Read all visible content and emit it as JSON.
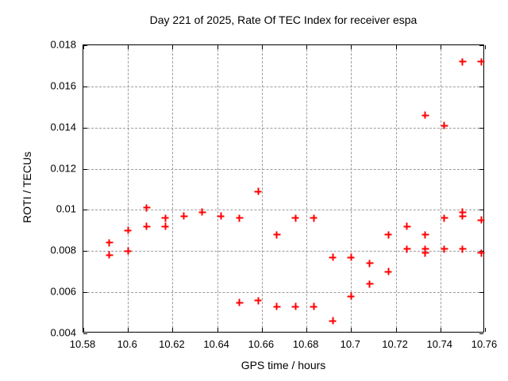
{
  "chart_data": {
    "type": "scatter",
    "title": "Day 221 of 2025, Rate Of TEC Index for receiver espa",
    "xlabel": "GPS time / hours",
    "ylabel": "ROTI / TECUs",
    "xlim": [
      10.58,
      10.76
    ],
    "ylim": [
      0.004,
      0.018
    ],
    "x_ticks": [
      10.58,
      10.6,
      10.62,
      10.64,
      10.66,
      10.68,
      10.7,
      10.72,
      10.74,
      10.76
    ],
    "x_tick_labels": [
      "10.58",
      "10.6",
      "10.62",
      "10.64",
      "10.66",
      "10.68",
      "10.7",
      "10.72",
      "10.74",
      "10.76"
    ],
    "y_ticks": [
      0.004,
      0.006,
      0.008,
      0.01,
      0.012,
      0.014,
      0.016,
      0.018
    ],
    "y_tick_labels": [
      "0.004",
      "0.006",
      "0.008",
      "0.01",
      "0.012",
      "0.014",
      "0.016",
      "0.018"
    ],
    "grid": true,
    "legend": "none",
    "marker_style": "plus",
    "marker_color": "#ff0000",
    "series": [
      {
        "name": "ROTI",
        "points": [
          [
            10.5917,
            0.0084
          ],
          [
            10.5917,
            0.0078
          ],
          [
            10.6,
            0.009
          ],
          [
            10.6,
            0.008
          ],
          [
            10.6083,
            0.0101
          ],
          [
            10.6083,
            0.0092
          ],
          [
            10.6167,
            0.0096
          ],
          [
            10.6167,
            0.0092
          ],
          [
            10.625,
            0.0097
          ],
          [
            10.6333,
            0.0099
          ],
          [
            10.6417,
            0.0097
          ],
          [
            10.65,
            0.0096
          ],
          [
            10.65,
            0.0055
          ],
          [
            10.6583,
            0.0109
          ],
          [
            10.6583,
            0.0056
          ],
          [
            10.6667,
            0.0088
          ],
          [
            10.6667,
            0.0053
          ],
          [
            10.675,
            0.0096
          ],
          [
            10.675,
            0.0053
          ],
          [
            10.6833,
            0.0096
          ],
          [
            10.6833,
            0.0053
          ],
          [
            10.6917,
            0.0077
          ],
          [
            10.6917,
            0.0046
          ],
          [
            10.7,
            0.0077
          ],
          [
            10.7,
            0.0058
          ],
          [
            10.7083,
            0.0074
          ],
          [
            10.7083,
            0.0064
          ],
          [
            10.7167,
            0.0088
          ],
          [
            10.7167,
            0.007
          ],
          [
            10.725,
            0.0092
          ],
          [
            10.725,
            0.0081
          ],
          [
            10.7333,
            0.0146
          ],
          [
            10.7333,
            0.0088
          ],
          [
            10.7333,
            0.0081
          ],
          [
            10.7333,
            0.0079
          ],
          [
            10.7417,
            0.0141
          ],
          [
            10.7417,
            0.0096
          ],
          [
            10.7417,
            0.0081
          ],
          [
            10.75,
            0.0172
          ],
          [
            10.75,
            0.0099
          ],
          [
            10.75,
            0.0097
          ],
          [
            10.75,
            0.0081
          ],
          [
            10.7583,
            0.0172
          ],
          [
            10.7583,
            0.0095
          ],
          [
            10.7583,
            0.0079
          ]
        ]
      }
    ]
  }
}
